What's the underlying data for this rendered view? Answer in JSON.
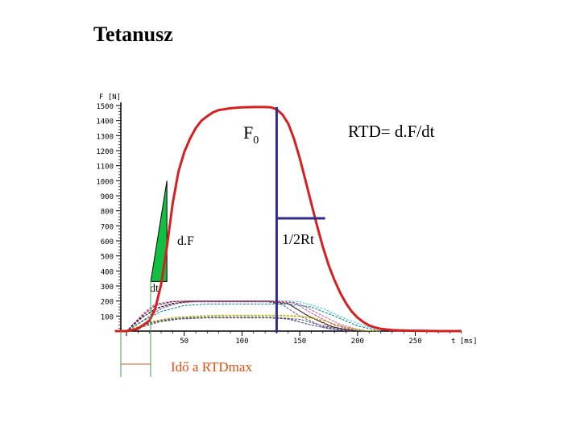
{
  "title": "Tetanusz",
  "chart_data": {
    "type": "line",
    "ylabel": "F [N]",
    "xlabel": "t [ms]",
    "xlim": [
      -10,
      305
    ],
    "ylim": [
      0,
      1500
    ],
    "yticks": [
      100,
      200,
      300,
      400,
      500,
      600,
      700,
      800,
      900,
      1000,
      1100,
      1200,
      1300,
      1400,
      1500
    ],
    "yticks_text": [
      "100",
      "200",
      "300",
      "400",
      "500",
      "600",
      "700",
      "800",
      "900",
      "1000",
      "1100",
      "1200",
      "1300",
      "1400",
      "1500"
    ],
    "xticks": [
      50,
      100,
      150,
      200,
      250
    ],
    "xticks_text": [
      "50",
      "100",
      "150",
      "200",
      "250"
    ],
    "grid": false,
    "main_series": {
      "color": "#d42020",
      "x": [
        -10,
        0,
        10,
        20,
        25,
        30,
        35,
        40,
        45,
        50,
        55,
        60,
        65,
        70,
        75,
        80,
        90,
        100,
        110,
        120,
        125,
        130,
        135,
        140,
        145,
        150,
        155,
        160,
        165,
        170,
        175,
        180,
        185,
        190,
        195,
        200,
        205,
        210,
        215,
        220,
        230,
        240,
        250,
        260,
        270,
        280,
        290
      ],
      "y": [
        0,
        0,
        15,
        70,
        150,
        310,
        560,
        850,
        1060,
        1190,
        1280,
        1350,
        1400,
        1430,
        1455,
        1470,
        1482,
        1488,
        1490,
        1490,
        1488,
        1475,
        1440,
        1380,
        1280,
        1150,
        1000,
        850,
        700,
        560,
        440,
        340,
        255,
        185,
        130,
        90,
        60,
        38,
        24,
        15,
        7,
        4,
        2,
        1,
        0,
        0,
        0
      ]
    },
    "twitch_series": [
      {
        "color": "#c8d030",
        "x": [
          -10,
          0,
          20,
          40,
          60,
          80,
          130,
          160,
          175,
          190,
          200,
          220
        ],
        "y": [
          0,
          0,
          50,
          85,
          95,
          100,
          100,
          95,
          60,
          20,
          5,
          0
        ]
      },
      {
        "color": "#404040",
        "x": [
          -10,
          0,
          15,
          30,
          50,
          70,
          120,
          140,
          160,
          180,
          200
        ],
        "y": [
          0,
          0,
          40,
          70,
          85,
          90,
          90,
          80,
          40,
          10,
          0
        ]
      },
      {
        "color": "#7070c0",
        "x": [
          -10,
          0,
          15,
          30,
          50,
          70,
          120,
          140,
          155,
          175,
          195
        ],
        "y": [
          0,
          0,
          45,
          75,
          88,
          92,
          92,
          85,
          50,
          15,
          0
        ]
      },
      {
        "color": "#505050",
        "x": [
          -10,
          0,
          15,
          28,
          45,
          70,
          130,
          150,
          170,
          190,
          210
        ],
        "y": [
          0,
          0,
          30,
          60,
          80,
          88,
          88,
          78,
          35,
          8,
          0
        ]
      },
      {
        "color": "#40c8d0",
        "x": [
          -10,
          0,
          20,
          35,
          50,
          60,
          140,
          150,
          170,
          190,
          210,
          230
        ],
        "y": [
          0,
          0,
          100,
          170,
          195,
          200,
          200,
          195,
          150,
          80,
          25,
          0
        ]
      },
      {
        "color": "#a040a0",
        "x": [
          -10,
          0,
          15,
          25,
          40,
          55,
          130,
          145,
          160,
          180,
          200
        ],
        "y": [
          0,
          0,
          120,
          180,
          198,
          200,
          200,
          190,
          120,
          40,
          0
        ]
      },
      {
        "color": "#900000",
        "x": [
          -10,
          0,
          15,
          25,
          40,
          55,
          125,
          140,
          155,
          175,
          195
        ],
        "y": [
          0,
          0,
          110,
          170,
          195,
          200,
          200,
          185,
          110,
          35,
          0
        ]
      },
      {
        "color": "#5050b0",
        "x": [
          -10,
          0,
          15,
          30,
          45,
          60,
          120,
          135,
          150,
          170,
          190
        ],
        "y": [
          0,
          0,
          100,
          160,
          190,
          198,
          198,
          175,
          100,
          30,
          0
        ]
      },
      {
        "color": "#202020",
        "x": [
          -10,
          0,
          12,
          25,
          40,
          55,
          125,
          140,
          160,
          180,
          200
        ],
        "y": [
          0,
          0,
          80,
          150,
          185,
          195,
          195,
          180,
          90,
          25,
          0
        ]
      },
      {
        "color": "#d05090",
        "x": [
          -10,
          0,
          18,
          30,
          45,
          60,
          135,
          150,
          165,
          185,
          205
        ],
        "y": [
          0,
          0,
          90,
          150,
          185,
          195,
          195,
          182,
          120,
          45,
          0
        ]
      },
      {
        "color": "#c0a000",
        "x": [
          -10,
          0,
          20,
          40,
          60,
          80,
          130,
          150,
          170,
          190,
          210
        ],
        "y": [
          0,
          0,
          60,
          90,
          100,
          105,
          105,
          100,
          70,
          25,
          0
        ]
      },
      {
        "color": "#008080",
        "x": [
          -10,
          0,
          15,
          30,
          50,
          70,
          140,
          160,
          180,
          200,
          220
        ],
        "y": [
          0,
          0,
          70,
          130,
          170,
          180,
          180,
          160,
          100,
          35,
          0
        ]
      }
    ],
    "annotations": {
      "f0_label": "F",
      "f0_subscript": "0",
      "rtd_formula": "RTD= d.F/dt",
      "df_label": "d.F",
      "dt_label": "dt",
      "half_rt_label": "1/2Rt",
      "rtdmax_label": "Idő a RTDmax",
      "f0_x": 130,
      "half_relax_level": 750,
      "half_relax_x_end": 172,
      "rtd_segment": {
        "x0": 21,
        "y0": 330,
        "x1": 35,
        "y1": 1000,
        "x_end": 35
      }
    },
    "colors": {
      "axis": "#000000",
      "main": "#d42020",
      "marker": "#2e2e88",
      "fill": "#10c040",
      "label_orange": "#e05010",
      "bracket": "#40a050"
    }
  }
}
